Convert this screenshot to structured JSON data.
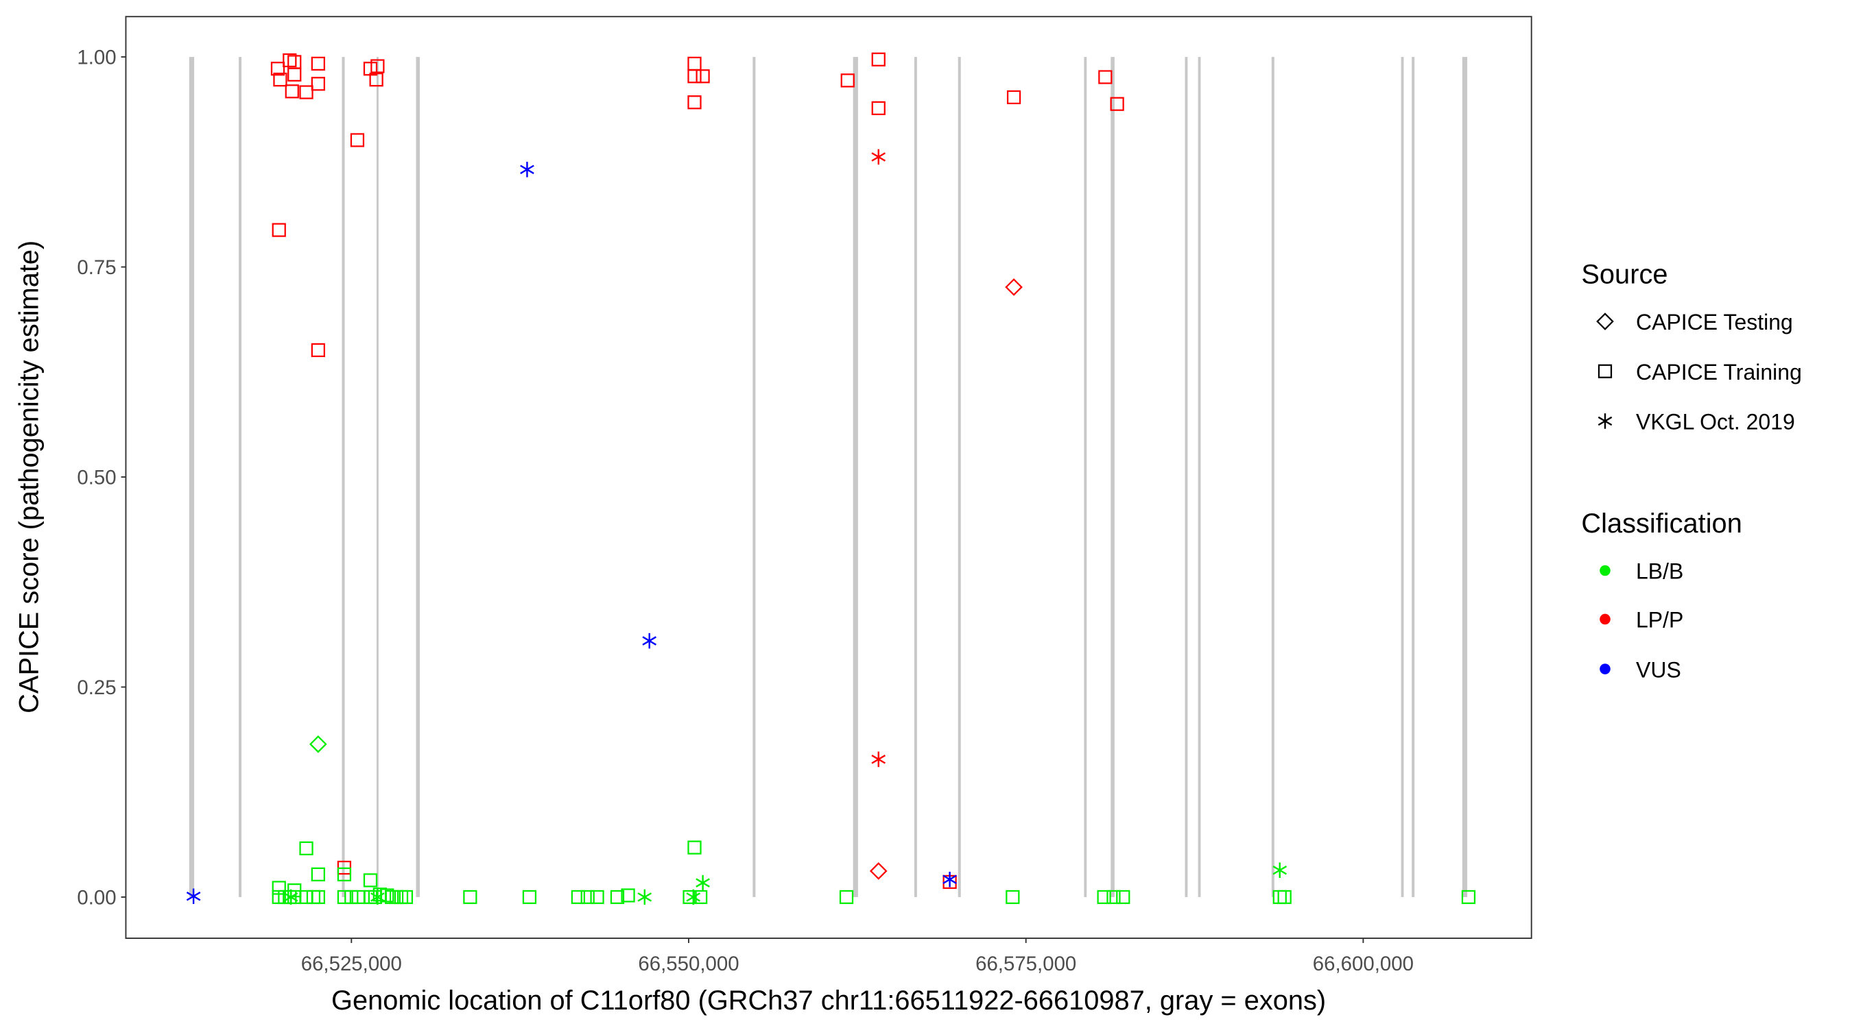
{
  "chart_data": {
    "type": "scatter",
    "xlabel": "Genomic location of C11orf80 (GRCh37 chr11:66511922-66610987, gray = exons)",
    "ylabel": "CAPICE score (pathogenicity estimate)",
    "xlim": [
      66508280,
      66612472
    ],
    "ylim": [
      -0.049,
      1.048
    ],
    "x_ticks": [
      66525000,
      66550000,
      66575000,
      66600000
    ],
    "x_tick_labels": [
      "66,525,000",
      "66,550,000",
      "66,575,000",
      "66,600,000"
    ],
    "y_ticks": [
      0,
      0.25,
      0.5,
      0.75,
      1.0
    ],
    "y_tick_labels": [
      "0.00",
      "0.25",
      "0.50",
      "0.75",
      "1.00"
    ],
    "grid": false,
    "exon_color": "#c8c8c8",
    "exons": [
      [
        66513028,
        66513292
      ],
      [
        66516700,
        66516800
      ],
      [
        66524350,
        66524450
      ],
      [
        66526920,
        66526960
      ],
      [
        66529842,
        66530018
      ],
      [
        66554800,
        66554900
      ],
      [
        66562237,
        66562501
      ],
      [
        66566780,
        66566870
      ],
      [
        66570020,
        66570120
      ],
      [
        66579360,
        66579450
      ],
      [
        66581339,
        66581515
      ],
      [
        66586840,
        66586930
      ],
      [
        66587810,
        66587900
      ],
      [
        66593260,
        66593360
      ],
      [
        66602860,
        66602950
      ],
      [
        66603650,
        66603750
      ],
      [
        66607396,
        66607660
      ]
    ],
    "legend_position": "right",
    "legend": {
      "source_title": "Source",
      "sources": [
        {
          "key": "testing",
          "label": "CAPICE Testing",
          "shape": "diamond"
        },
        {
          "key": "training",
          "label": "CAPICE Training",
          "shape": "square"
        },
        {
          "key": "vkgl",
          "label": "VKGL Oct. 2019",
          "shape": "asterisk"
        }
      ],
      "classification_title": "Classification",
      "classes": [
        {
          "key": "LB/B",
          "label": "LB/B",
          "color": "#00ee00"
        },
        {
          "key": "LP/P",
          "label": "LP/P",
          "color": "#ff0000"
        },
        {
          "key": "VUS",
          "label": "VUS",
          "color": "#0000ff"
        }
      ]
    },
    "point_fields": [
      "position",
      "score",
      "classification",
      "source"
    ],
    "points": [
      [
        66519544,
        0.986,
        "LP/P",
        "training"
      ],
      [
        66519720,
        0.973,
        "LP/P",
        "training"
      ],
      [
        66520424,
        0.996,
        "LP/P",
        "training"
      ],
      [
        66520776,
        0.994,
        "LP/P",
        "training"
      ],
      [
        66520776,
        0.979,
        "LP/P",
        "training"
      ],
      [
        66520600,
        0.959,
        "LP/P",
        "training"
      ],
      [
        66521656,
        0.958,
        "LP/P",
        "training"
      ],
      [
        66522536,
        0.992,
        "LP/P",
        "training"
      ],
      [
        66522536,
        0.968,
        "LP/P",
        "training"
      ],
      [
        66519632,
        0.794,
        "LP/P",
        "training"
      ],
      [
        66522536,
        0.651,
        "LP/P",
        "training"
      ],
      [
        66525440,
        0.901,
        "LP/P",
        "training"
      ],
      [
        66526408,
        0.986,
        "LP/P",
        "training"
      ],
      [
        66526936,
        0.989,
        "LP/P",
        "training"
      ],
      [
        66526848,
        0.973,
        "LP/P",
        "training"
      ],
      [
        66524472,
        0.035,
        "LP/P",
        "training"
      ],
      [
        66550432,
        0.992,
        "LP/P",
        "training"
      ],
      [
        66550432,
        0.977,
        "LP/P",
        "training"
      ],
      [
        66551048,
        0.977,
        "LP/P",
        "training"
      ],
      [
        66550432,
        0.946,
        "LP/P",
        "training"
      ],
      [
        66561784,
        0.972,
        "LP/P",
        "training"
      ],
      [
        66564072,
        0.997,
        "LP/P",
        "training"
      ],
      [
        66564072,
        0.939,
        "LP/P",
        "training"
      ],
      [
        66574104,
        0.952,
        "LP/P",
        "training"
      ],
      [
        66580880,
        0.976,
        "LP/P",
        "training"
      ],
      [
        66581760,
        0.944,
        "LP/P",
        "training"
      ],
      [
        66569352,
        0.018,
        "LP/P",
        "training"
      ],
      [
        66574104,
        0.726,
        "LP/P",
        "testing"
      ],
      [
        66564072,
        0.031,
        "LP/P",
        "testing"
      ],
      [
        66564072,
        0.881,
        "LP/P",
        "vkgl"
      ],
      [
        66564072,
        0.164,
        "LP/P",
        "vkgl"
      ],
      [
        66538024,
        0.866,
        "VUS",
        "vkgl"
      ],
      [
        66547088,
        0.305,
        "VUS",
        "vkgl"
      ],
      [
        66513296,
        0.001,
        "VUS",
        "vkgl"
      ],
      [
        66569352,
        0.021,
        "VUS",
        "vkgl"
      ],
      [
        66522536,
        0.182,
        "LB/B",
        "testing"
      ],
      [
        66521656,
        0.058,
        "LB/B",
        "training"
      ],
      [
        66522536,
        0.027,
        "LB/B",
        "training"
      ],
      [
        66524472,
        0.027,
        "LB/B",
        "training"
      ],
      [
        66526408,
        0.02,
        "LB/B",
        "training"
      ],
      [
        66519632,
        0.011,
        "LB/B",
        "training"
      ],
      [
        66520776,
        0.008,
        "LB/B",
        "training"
      ],
      [
        66550432,
        0.059,
        "LB/B",
        "training"
      ],
      [
        66519632,
        0,
        "LB/B",
        "training"
      ],
      [
        66520072,
        0,
        "LB/B",
        "training"
      ],
      [
        66520424,
        0,
        "LB/B",
        "training"
      ],
      [
        66520776,
        0,
        "LB/B",
        "training"
      ],
      [
        66521656,
        0,
        "LB/B",
        "training"
      ],
      [
        66522184,
        0,
        "LB/B",
        "training"
      ],
      [
        66522536,
        0,
        "LB/B",
        "training"
      ],
      [
        66524472,
        0,
        "LB/B",
        "training"
      ],
      [
        66525000,
        0,
        "LB/B",
        "training"
      ],
      [
        66525528,
        0,
        "LB/B",
        "training"
      ],
      [
        66526408,
        0,
        "LB/B",
        "training"
      ],
      [
        66526760,
        0,
        "LB/B",
        "training"
      ],
      [
        66527112,
        0.003,
        "LB/B",
        "training"
      ],
      [
        66527640,
        0.002,
        "LB/B",
        "training"
      ],
      [
        66527992,
        0,
        "LB/B",
        "training"
      ],
      [
        66528344,
        0,
        "LB/B",
        "training"
      ],
      [
        66528696,
        0,
        "LB/B",
        "training"
      ],
      [
        66529048,
        0,
        "LB/B",
        "training"
      ],
      [
        66533800,
        0,
        "LB/B",
        "training"
      ],
      [
        66538200,
        0,
        "LB/B",
        "training"
      ],
      [
        66541808,
        0,
        "LB/B",
        "training"
      ],
      [
        66542512,
        0,
        "LB/B",
        "training"
      ],
      [
        66543216,
        0,
        "LB/B",
        "training"
      ],
      [
        66544712,
        0,
        "LB/B",
        "training"
      ],
      [
        66545504,
        0.002,
        "LB/B",
        "training"
      ],
      [
        66550080,
        0,
        "LB/B",
        "training"
      ],
      [
        66550872,
        0,
        "LB/B",
        "training"
      ],
      [
        66561696,
        0,
        "LB/B",
        "training"
      ],
      [
        66574016,
        0,
        "LB/B",
        "training"
      ],
      [
        66580792,
        0,
        "LB/B",
        "training"
      ],
      [
        66581496,
        0,
        "LB/B",
        "training"
      ],
      [
        66582200,
        0,
        "LB/B",
        "training"
      ],
      [
        66593816,
        0,
        "LB/B",
        "training"
      ],
      [
        66594168,
        0,
        "LB/B",
        "training"
      ],
      [
        66607808,
        0,
        "LB/B",
        "training"
      ],
      [
        66520512,
        0,
        "LB/B",
        "vkgl"
      ],
      [
        66526936,
        0,
        "LB/B",
        "vkgl"
      ],
      [
        66546736,
        0,
        "LB/B",
        "vkgl"
      ],
      [
        66550344,
        0,
        "LB/B",
        "vkgl"
      ],
      [
        66551048,
        0.017,
        "LB/B",
        "vkgl"
      ],
      [
        66593816,
        0.032,
        "LB/B",
        "vkgl"
      ]
    ]
  }
}
